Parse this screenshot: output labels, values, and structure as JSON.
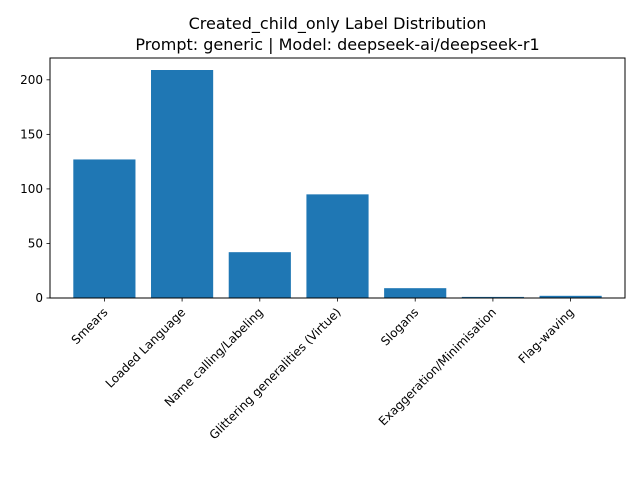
{
  "chart_data": {
    "type": "bar",
    "title": "Created_child_only Label Distribution",
    "subtitle": "Prompt: generic | Model: deepseek-ai/deepseek-r1",
    "xlabel": "",
    "ylabel": "",
    "categories": [
      "Smears",
      "Loaded Language",
      "Name calling/Labeling",
      "Glittering generalities (Virtue)",
      "Slogans",
      "Exaggeration/Minimisation",
      "Flag-waving"
    ],
    "values": [
      127,
      209,
      42,
      95,
      9,
      1,
      2
    ],
    "ylim": [
      0,
      220
    ],
    "yticks": [
      0,
      50,
      100,
      150,
      200
    ],
    "bar_color": "#1f77b4",
    "grid": false,
    "legend": "none"
  }
}
